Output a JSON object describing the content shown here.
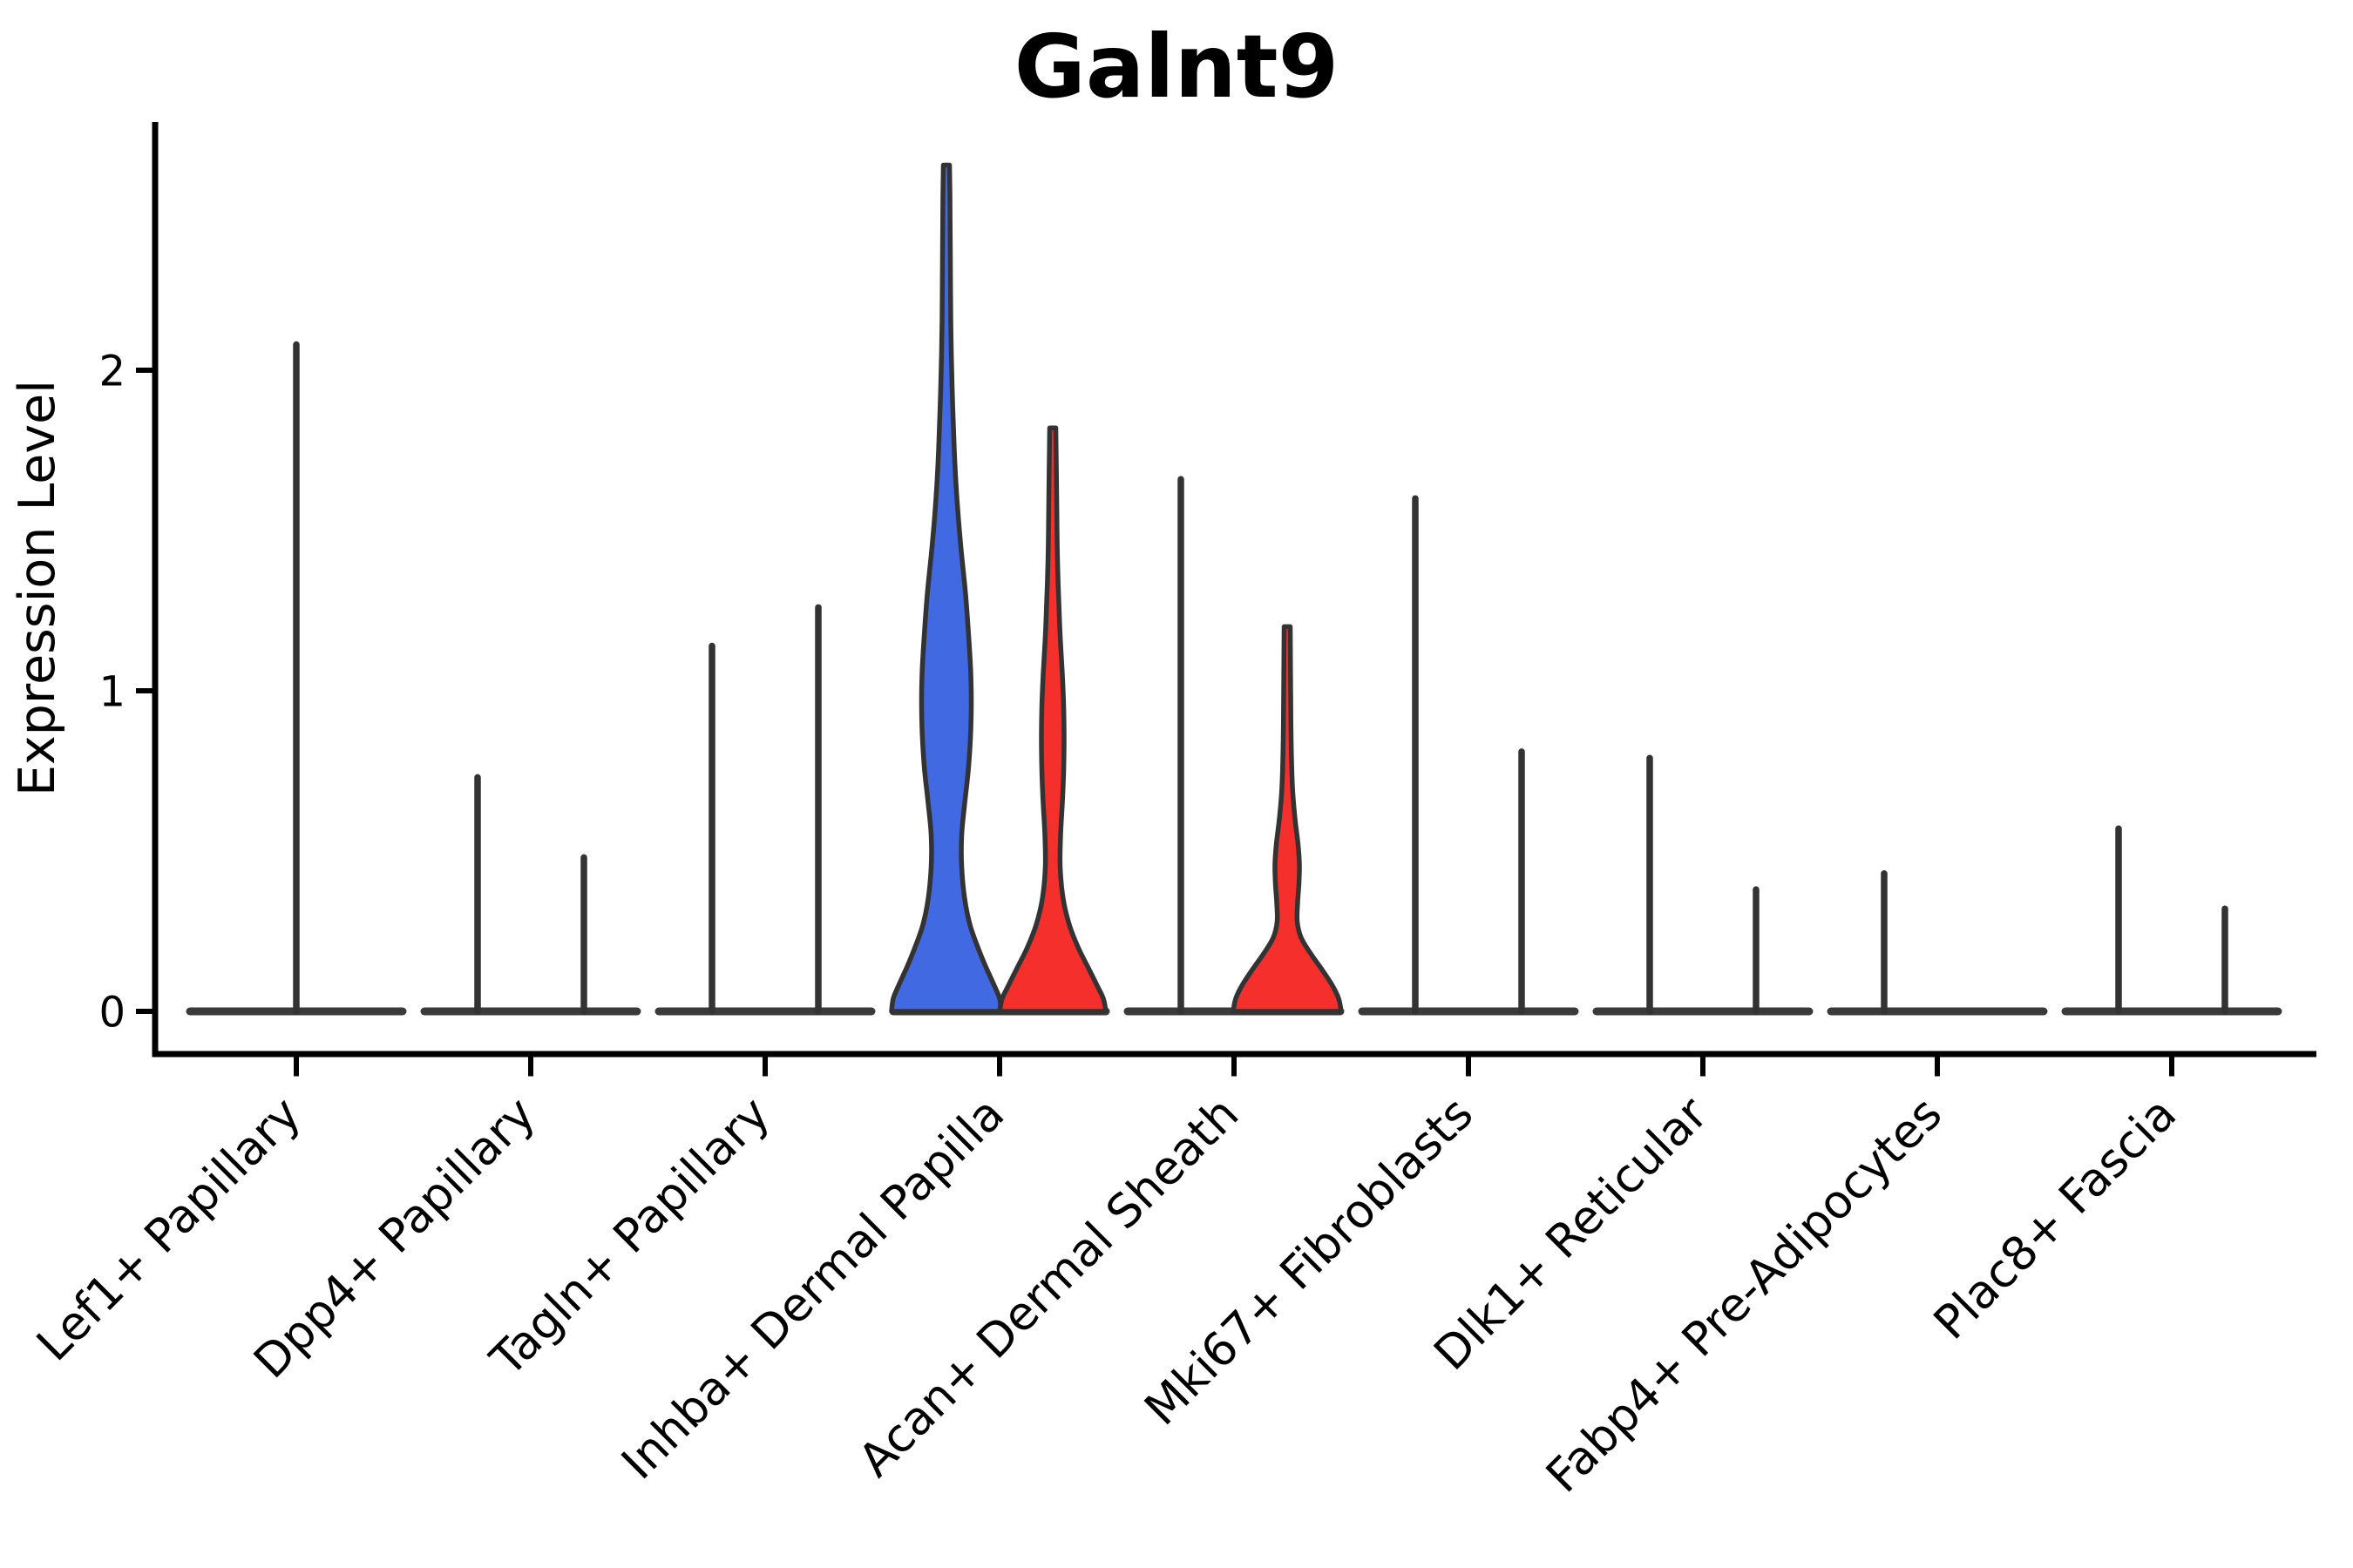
{
  "title": "Galnt9",
  "ylabel": "Expression Level",
  "chart_data": {
    "type": "violin",
    "title": "Galnt9",
    "xlabel": "",
    "ylabel": "Expression Level",
    "ylim": [
      -0.13,
      2.77
    ],
    "yticks": [
      0,
      1,
      2
    ],
    "grid": false,
    "legend_position": "none",
    "colors": {
      "blue_fill": "#4169E1",
      "red_fill": "#F5302C",
      "violin_outline": "#333333",
      "baseline": "#3a3a3a",
      "axis": "#000000",
      "text": "#000000"
    },
    "categories": [
      "Lef1+ Papillary",
      "Dpp4+ Papillary",
      "Tagln+ Papillary",
      "Inhba+ Dermal Papilla",
      "Acan+ Dermal Sheath",
      "Mki67+ Fibroblasts",
      "Dlk1+ Reticular",
      "Fabp4+ Pre-Adipocytes",
      "Plac8+ Fascia"
    ],
    "violins": [
      {
        "category": "Lef1+ Papillary",
        "parts": [
          {
            "pos": "center",
            "kind": "spike",
            "max_expression": 2.08
          }
        ]
      },
      {
        "category": "Dpp4+ Papillary",
        "parts": [
          {
            "pos": "left",
            "kind": "spike",
            "max_expression": 0.73
          },
          {
            "pos": "right",
            "kind": "spike",
            "max_expression": 0.48
          }
        ]
      },
      {
        "category": "Tagln+ Papillary",
        "parts": [
          {
            "pos": "left",
            "kind": "spike",
            "max_expression": 1.14
          },
          {
            "pos": "right",
            "kind": "spike",
            "max_expression": 1.26
          }
        ]
      },
      {
        "category": "Inhba+ Dermal Papilla",
        "parts": [
          {
            "pos": "left",
            "kind": "violin",
            "fill": "blue_fill",
            "max_expression": 2.64,
            "profile": "inhba_blue"
          },
          {
            "pos": "right",
            "kind": "violin",
            "fill": "red_fill",
            "max_expression": 1.82,
            "profile": "inhba_red"
          }
        ]
      },
      {
        "category": "Acan+ Dermal Sheath",
        "parts": [
          {
            "pos": "left",
            "kind": "spike",
            "max_expression": 1.66
          },
          {
            "pos": "right",
            "kind": "violin",
            "fill": "red_fill",
            "max_expression": 1.2,
            "profile": "acan_red"
          }
        ]
      },
      {
        "category": "Mki67+ Fibroblasts",
        "parts": [
          {
            "pos": "left",
            "kind": "spike",
            "max_expression": 1.6
          },
          {
            "pos": "right",
            "kind": "spike",
            "max_expression": 0.81
          }
        ]
      },
      {
        "category": "Dlk1+ Reticular",
        "parts": [
          {
            "pos": "left",
            "kind": "spike",
            "max_expression": 0.79
          },
          {
            "pos": "right",
            "kind": "spike",
            "max_expression": 0.38
          }
        ]
      },
      {
        "category": "Fabp4+ Pre-Adipocytes",
        "parts": [
          {
            "pos": "left",
            "kind": "spike",
            "max_expression": 0.43
          },
          {
            "pos": "right",
            "kind": "flat",
            "max_expression": 0.0
          }
        ]
      },
      {
        "category": "Plac8+ Fascia",
        "parts": [
          {
            "pos": "left",
            "kind": "spike",
            "max_expression": 0.57
          },
          {
            "pos": "right",
            "kind": "spike",
            "max_expression": 0.32
          }
        ]
      }
    ],
    "profiles": {
      "inhba_blue": [
        [
          0.0,
          63
        ],
        [
          0.04,
          61
        ],
        [
          0.08,
          55
        ],
        [
          0.14,
          45
        ],
        [
          0.2,
          36
        ],
        [
          0.27,
          27
        ],
        [
          0.35,
          21
        ],
        [
          0.45,
          17.5
        ],
        [
          0.55,
          17.5
        ],
        [
          0.65,
          21
        ],
        [
          0.75,
          25
        ],
        [
          0.85,
          27.5
        ],
        [
          0.95,
          28.5
        ],
        [
          1.05,
          28
        ],
        [
          1.15,
          26
        ],
        [
          1.3,
          22
        ],
        [
          1.45,
          16.5
        ],
        [
          1.6,
          12
        ],
        [
          1.75,
          9
        ],
        [
          1.95,
          6.5
        ],
        [
          2.15,
          5
        ],
        [
          2.35,
          4.5
        ],
        [
          2.55,
          4
        ],
        [
          2.64,
          3.5
        ]
      ],
      "inhba_red": [
        [
          0.0,
          61
        ],
        [
          0.04,
          58
        ],
        [
          0.08,
          51
        ],
        [
          0.14,
          40
        ],
        [
          0.2,
          29
        ],
        [
          0.27,
          19
        ],
        [
          0.35,
          12
        ],
        [
          0.45,
          8.5
        ],
        [
          0.55,
          9
        ],
        [
          0.65,
          11
        ],
        [
          0.75,
          12.5
        ],
        [
          0.85,
          13
        ],
        [
          0.95,
          12.5
        ],
        [
          1.05,
          11
        ],
        [
          1.2,
          8
        ],
        [
          1.4,
          5.5
        ],
        [
          1.6,
          4.5
        ],
        [
          1.82,
          3.5
        ]
      ],
      "acan_red": [
        [
          0.0,
          62
        ],
        [
          0.04,
          59
        ],
        [
          0.08,
          52
        ],
        [
          0.13,
          40
        ],
        [
          0.18,
          27
        ],
        [
          0.23,
          16
        ],
        [
          0.28,
          11.5
        ],
        [
          0.34,
          12
        ],
        [
          0.4,
          13.5
        ],
        [
          0.46,
          14
        ],
        [
          0.52,
          12.5
        ],
        [
          0.6,
          9
        ],
        [
          0.7,
          6
        ],
        [
          0.85,
          4.5
        ],
        [
          1.0,
          4
        ],
        [
          1.2,
          3.5
        ]
      ]
    }
  }
}
